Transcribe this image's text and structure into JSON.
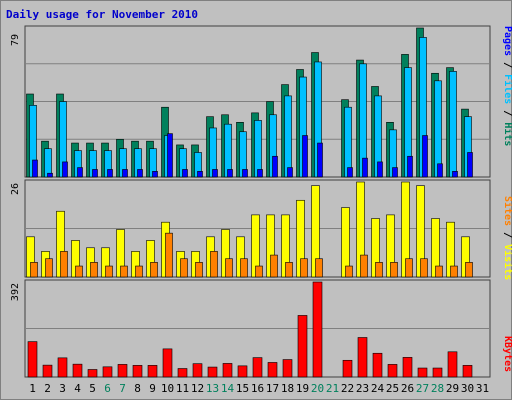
{
  "chart_data": {
    "type": "bar",
    "title": "Daily usage for November 2010",
    "categories": [
      "1",
      "2",
      "3",
      "4",
      "5",
      "6",
      "7",
      "8",
      "9",
      "10",
      "11",
      "12",
      "13",
      "14",
      "15",
      "16",
      "17",
      "18",
      "19",
      "20",
      "21",
      "22",
      "23",
      "24",
      "25",
      "26",
      "27",
      "28",
      "29",
      "30",
      "31"
    ],
    "weekend_days": [
      "6",
      "7",
      "13",
      "14",
      "20",
      "21",
      "27",
      "28"
    ],
    "colors": {
      "hits": "#00805c",
      "files": "#00c0ff",
      "pages": "#0000ff",
      "visits": "#ffff00",
      "sites": "#ff8000",
      "kbytes": "#ff0000",
      "weekday_label": "#000000",
      "weekend_label": "#00805c",
      "panel_bg": "#c0c0c0",
      "grid": "#808080"
    },
    "panels": [
      {
        "name": "Hits / Files / Pages",
        "ymax_label": "79",
        "ymax": 79,
        "series": [
          {
            "name": "Hits",
            "values": [
              44,
              19,
              44,
              18,
              18,
              18,
              20,
              19,
              19,
              37,
              17,
              17,
              32,
              33,
              29,
              34,
              40,
              49,
              57,
              66,
              0,
              41,
              62,
              48,
              29,
              65,
              79,
              55,
              58,
              36,
              0
            ]
          },
          {
            "name": "Files",
            "values": [
              38,
              15,
              40,
              14,
              14,
              14,
              15,
              15,
              15,
              22,
              15,
              13,
              26,
              28,
              24,
              30,
              33,
              43,
              53,
              61,
              0,
              37,
              60,
              43,
              25,
              58,
              74,
              51,
              56,
              32,
              0
            ]
          },
          {
            "name": "Pages",
            "values": [
              9,
              2,
              8,
              5,
              4,
              4,
              4,
              4,
              3,
              23,
              4,
              3,
              4,
              4,
              4,
              4,
              11,
              5,
              22,
              18,
              0,
              5,
              10,
              8,
              5,
              11,
              22,
              7,
              3,
              13,
              0
            ]
          }
        ]
      },
      {
        "name": "Visits / Sites",
        "ymax_label": "26",
        "ymax": 26,
        "series": [
          {
            "name": "Visits",
            "values": [
              11,
              7,
              18,
              10,
              8,
              8,
              13,
              7,
              10,
              15,
              7,
              7,
              11,
              13,
              11,
              17,
              17,
              17,
              21,
              25,
              0,
              19,
              26,
              16,
              17,
              26,
              25,
              16,
              15,
              11,
              0
            ]
          },
          {
            "name": "Sites",
            "values": [
              4,
              5,
              7,
              3,
              4,
              3,
              3,
              3,
              4,
              12,
              5,
              4,
              7,
              5,
              5,
              3,
              6,
              4,
              5,
              5,
              0,
              3,
              6,
              4,
              4,
              5,
              5,
              3,
              3,
              4,
              0
            ]
          }
        ]
      },
      {
        "name": "KBytes",
        "ymax_label": "392",
        "ymax": 392,
        "series": [
          {
            "name": "KBytes",
            "values": [
              146,
              49,
              79,
              53,
              31,
              42,
              52,
              48,
              48,
              116,
              35,
              55,
              41,
              56,
              46,
              80,
              60,
              72,
              254,
              392,
              0,
              69,
              163,
              98,
              52,
              81,
              37,
              37,
              104,
              48,
              0
            ]
          }
        ]
      }
    ],
    "legends": {
      "pages": "Pages",
      "files": "Files",
      "hits": "Hits",
      "sites": "Sites",
      "visits": "Visits",
      "kbytes": "KBytes",
      "sep": " / "
    },
    "grid": true
  }
}
